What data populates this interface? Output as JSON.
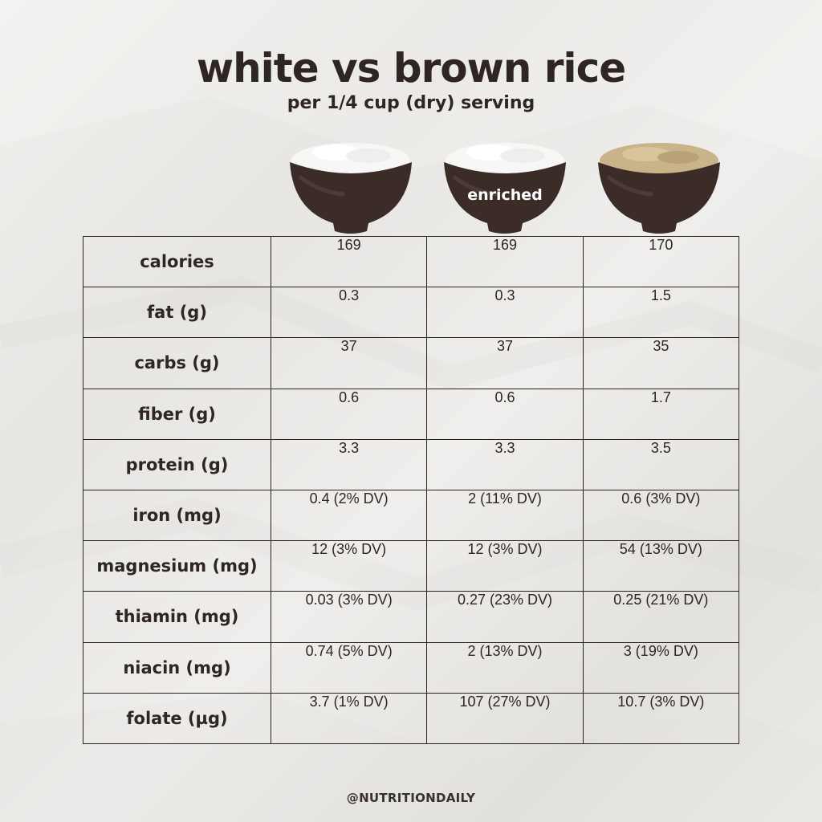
{
  "header": {
    "title": "white vs brown rice",
    "subtitle": "per 1/4 cup (dry) serving"
  },
  "columns": [
    {
      "icon": "white-rice-bowl-icon",
      "label": ""
    },
    {
      "icon": "enriched-white-rice-bowl-icon",
      "label": "enriched"
    },
    {
      "icon": "brown-rice-bowl-icon",
      "label": ""
    }
  ],
  "table": {
    "rows": [
      {
        "label": "calories",
        "values": [
          "169",
          "169",
          "170"
        ]
      },
      {
        "label": "fat (g)",
        "values": [
          "0.3",
          "0.3",
          "1.5"
        ]
      },
      {
        "label": "carbs (g)",
        "values": [
          "37",
          "37",
          "35"
        ]
      },
      {
        "label": "fiber (g)",
        "values": [
          "0.6",
          "0.6",
          "1.7"
        ]
      },
      {
        "label": "protein (g)",
        "values": [
          "3.3",
          "3.3",
          "3.5"
        ]
      },
      {
        "label": "iron (mg)",
        "values": [
          "0.4 (2% DV)",
          "2 (11% DV)",
          "0.6 (3% DV)"
        ]
      },
      {
        "label": "magnesium (mg)",
        "values": [
          "12 (3% DV)",
          "12 (3% DV)",
          "54 (13% DV)"
        ]
      },
      {
        "label": "thiamin (mg)",
        "values": [
          "0.03 (3% DV)",
          "0.27 (23% DV)",
          "0.25 (21% DV)"
        ]
      },
      {
        "label": "niacin (mg)",
        "values": [
          "0.74 (5% DV)",
          "2 (13% DV)",
          "3 (19% DV)"
        ]
      },
      {
        "label": "folate (µg)",
        "values": [
          "3.7 (1% DV)",
          "107 (27% DV)",
          "10.7 (3% DV)"
        ]
      }
    ]
  },
  "footer": {
    "handle": "@NUTRITIONDAILY"
  },
  "colors": {
    "text": "#2f2623",
    "bowl": "#3b2c27",
    "white_rice": "#f7f7f5",
    "brown_rice": "#c9b48a",
    "background": "#ecebe8"
  }
}
